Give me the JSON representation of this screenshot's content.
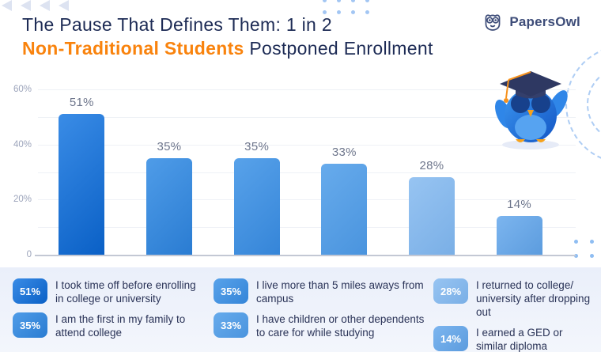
{
  "header": {
    "title_line1": "The Pause That Defines Them: 1 in 2",
    "title_highlight": "Non-Traditional Students",
    "title_rest": " Postponed Enrollment"
  },
  "brand": {
    "name": "PapersOwl"
  },
  "chart_data": {
    "type": "bar",
    "title": "The Pause That Defines Them: 1 in 2 Non-Traditional Students Postponed Enrollment",
    "categories": [
      "I took time off before enrolling in college or university",
      "I am the first in my family to attend college",
      "I live more than 5 miles aways from campus",
      "I have children or other dependents to care for while studying",
      "I returned to college/ university after dropping out",
      "I earned a GED or similar diploma"
    ],
    "values": [
      51,
      35,
      35,
      33,
      28,
      14
    ],
    "value_labels": [
      "51%",
      "35%",
      "35%",
      "33%",
      "28%",
      "14%"
    ],
    "xlabel": "",
    "ylabel": "",
    "ylim": [
      0,
      60
    ],
    "ytick_step": 10,
    "yticks_labeled": {
      "60": "60%",
      "40": "40%",
      "20": "20%",
      "0": "0"
    },
    "grid": true,
    "legend_position": "bottom",
    "bar_gradients": [
      [
        "#3a8ce6",
        "#0a60c6"
      ],
      [
        "#4f9ce8",
        "#2a7cd2"
      ],
      [
        "#58a2ea",
        "#3585d8"
      ],
      [
        "#67abec",
        "#4a94de"
      ],
      [
        "#97c4f2",
        "#7aafe6"
      ],
      [
        "#7cb5ef",
        "#5c9cde"
      ]
    ]
  },
  "legend": {
    "items": [
      {
        "value": "51%",
        "label": "I took time off before enrolling in college or university"
      },
      {
        "value": "35%",
        "label": "I am the first in my family to attend college"
      },
      {
        "value": "35%",
        "label": "I live more than 5 miles aways from campus"
      },
      {
        "value": "33%",
        "label": "I have children or other dependents to care for while studying"
      },
      {
        "value": "28%",
        "label": "I returned to college/ university after dropping out"
      },
      {
        "value": "14%",
        "label": "I earned a GED or similar diploma"
      }
    ]
  },
  "colors": {
    "accent_orange": "#f9830d",
    "navy_text": "#1d2b55",
    "axis_label_color": "#9ca4bb",
    "value_label_color": "#6e768c",
    "legend_bg": "#edf1fa"
  }
}
